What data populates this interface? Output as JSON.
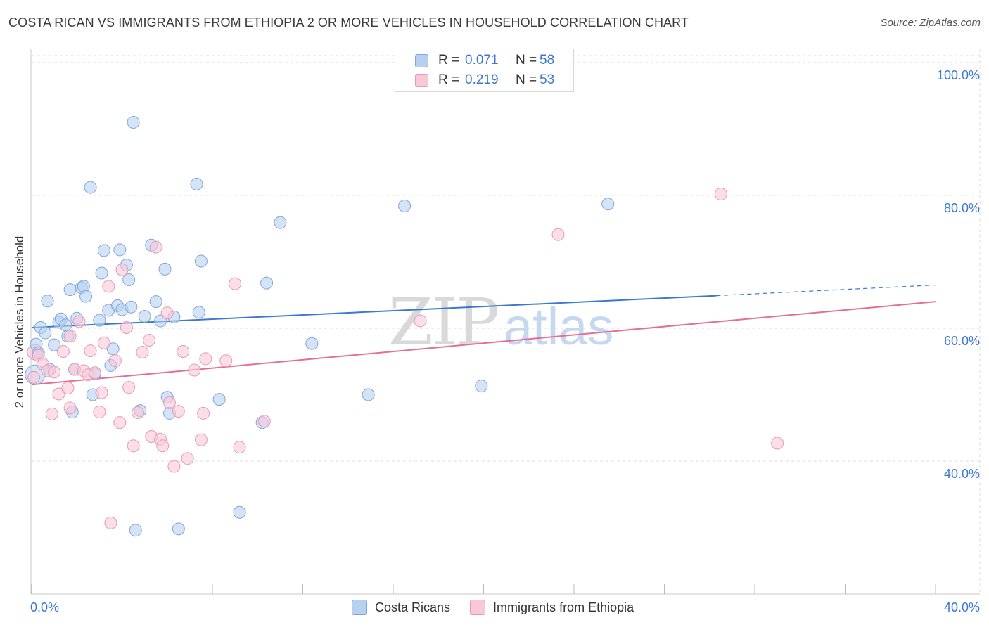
{
  "title": "COSTA RICAN VS IMMIGRANTS FROM ETHIOPIA 2 OR MORE VEHICLES IN HOUSEHOLD CORRELATION CHART",
  "source": "Source: ZipAtlas.com",
  "watermark": {
    "part1": "ZIP",
    "part2": "atlas"
  },
  "legend_top": {
    "rows": [
      {
        "r_label": "R =",
        "r_value": "0.071",
        "n_label": "N =",
        "n_value": "58"
      },
      {
        "r_label": "R =",
        "r_value": "0.219",
        "n_label": "N =",
        "n_value": "53"
      }
    ]
  },
  "legend_bottom": {
    "items": [
      "Costa Ricans",
      "Immigrants from Ethiopia"
    ]
  },
  "colors": {
    "blue": "#3b78d0",
    "blue_fill": "#b8d0f0",
    "pink": "#e36f98",
    "pink_fill": "#f8c8d8",
    "grid": "#dddddd"
  },
  "chart_data": {
    "type": "scatter",
    "title": "COSTA RICAN VS IMMIGRANTS FROM ETHIOPIA 2 OR MORE VEHICLES IN HOUSEHOLD CORRELATION CHART",
    "xlabel": "",
    "ylabel": "2 or more Vehicles in Household",
    "xlim": [
      0,
      40
    ],
    "ylim": [
      20,
      102
    ],
    "x_tick_labels": [
      "0.0%",
      "40.0%"
    ],
    "y_ticks": [
      40,
      60,
      80,
      100
    ],
    "y_tick_labels": [
      "40.0%",
      "60.0%",
      "80.0%",
      "100.0%"
    ],
    "grid": true,
    "series": [
      {
        "name": "Costa Ricans",
        "color": "#3b78d0",
        "R": 0.071,
        "N": 58,
        "trend": {
          "x0": 0,
          "y0": 60.1,
          "x1": 30.3,
          "y1": 64.9,
          "dash_x1": 40,
          "dash_y1": 66.5
        },
        "points": [
          [
            0.2,
            57.6
          ],
          [
            0.3,
            56.3
          ],
          [
            0.4,
            60.1
          ],
          [
            0.6,
            59.3
          ],
          [
            0.7,
            64.1
          ],
          [
            0.8,
            53.8
          ],
          [
            1.0,
            57.5
          ],
          [
            1.2,
            60.9
          ],
          [
            1.3,
            61.4
          ],
          [
            1.5,
            60.5
          ],
          [
            1.6,
            58.8
          ],
          [
            1.7,
            65.8
          ],
          [
            1.8,
            47.4
          ],
          [
            1.9,
            53.8
          ],
          [
            2.0,
            61.5
          ],
          [
            2.2,
            66.1
          ],
          [
            2.3,
            66.3
          ],
          [
            2.4,
            64.8
          ],
          [
            2.6,
            81.2
          ],
          [
            2.7,
            50.0
          ],
          [
            2.8,
            53.1
          ],
          [
            3.0,
            61.2
          ],
          [
            3.1,
            68.3
          ],
          [
            3.2,
            71.7
          ],
          [
            3.4,
            62.7
          ],
          [
            3.5,
            54.4
          ],
          [
            3.6,
            56.9
          ],
          [
            3.8,
            63.4
          ],
          [
            3.9,
            71.8
          ],
          [
            4.0,
            62.8
          ],
          [
            4.2,
            69.5
          ],
          [
            4.3,
            67.3
          ],
          [
            4.4,
            63.2
          ],
          [
            4.5,
            91.0
          ],
          [
            4.8,
            47.6
          ],
          [
            5.0,
            61.8
          ],
          [
            5.3,
            72.5
          ],
          [
            5.5,
            64.0
          ],
          [
            5.7,
            61.1
          ],
          [
            5.9,
            68.9
          ],
          [
            6.0,
            49.6
          ],
          [
            6.1,
            47.2
          ],
          [
            6.3,
            61.7
          ],
          [
            6.5,
            29.8
          ],
          [
            7.3,
            81.7
          ],
          [
            7.4,
            62.4
          ],
          [
            7.5,
            70.1
          ],
          [
            8.3,
            49.3
          ],
          [
            9.2,
            32.3
          ],
          [
            10.2,
            45.8
          ],
          [
            10.4,
            66.8
          ],
          [
            11.0,
            75.9
          ],
          [
            12.4,
            57.7
          ],
          [
            14.9,
            50.0
          ],
          [
            16.5,
            78.4
          ],
          [
            19.9,
            51.3
          ],
          [
            25.5,
            78.7
          ],
          [
            4.6,
            29.6
          ]
        ]
      },
      {
        "name": "Immigrants from Ethiopia",
        "color": "#e36f98",
        "R": 0.219,
        "N": 53,
        "trend": {
          "x0": 0,
          "y0": 51.5,
          "x1": 40,
          "y1": 64.0
        },
        "points": [
          [
            0.1,
            52.6
          ],
          [
            0.3,
            55.9
          ],
          [
            0.5,
            54.6
          ],
          [
            0.7,
            53.6
          ],
          [
            0.9,
            47.1
          ],
          [
            1.0,
            53.4
          ],
          [
            1.2,
            50.1
          ],
          [
            1.4,
            56.5
          ],
          [
            1.6,
            51.0
          ],
          [
            1.7,
            58.8
          ],
          [
            1.9,
            53.8
          ],
          [
            2.1,
            61.0
          ],
          [
            2.3,
            53.6
          ],
          [
            2.5,
            53.0
          ],
          [
            2.6,
            56.6
          ],
          [
            2.8,
            53.3
          ],
          [
            3.0,
            47.4
          ],
          [
            3.1,
            50.3
          ],
          [
            3.2,
            57.8
          ],
          [
            3.4,
            66.3
          ],
          [
            3.5,
            30.7
          ],
          [
            3.7,
            55.1
          ],
          [
            3.9,
            45.8
          ],
          [
            4.0,
            68.8
          ],
          [
            4.2,
            60.1
          ],
          [
            4.3,
            51.1
          ],
          [
            4.5,
            42.3
          ],
          [
            4.7,
            47.3
          ],
          [
            4.9,
            56.4
          ],
          [
            5.2,
            58.2
          ],
          [
            5.3,
            43.7
          ],
          [
            5.5,
            72.2
          ],
          [
            5.7,
            43.3
          ],
          [
            5.8,
            42.3
          ],
          [
            6.0,
            62.3
          ],
          [
            6.1,
            48.8
          ],
          [
            6.3,
            39.2
          ],
          [
            6.5,
            47.5
          ],
          [
            6.7,
            56.5
          ],
          [
            6.9,
            40.4
          ],
          [
            7.2,
            53.7
          ],
          [
            7.5,
            43.2
          ],
          [
            7.6,
            47.2
          ],
          [
            7.7,
            55.4
          ],
          [
            8.6,
            55.1
          ],
          [
            9.0,
            66.7
          ],
          [
            9.2,
            42.1
          ],
          [
            10.3,
            46.0
          ],
          [
            17.2,
            61.1
          ],
          [
            23.3,
            74.1
          ],
          [
            30.5,
            80.2
          ],
          [
            33.0,
            42.7
          ],
          [
            1.7,
            48.0
          ]
        ]
      }
    ]
  }
}
